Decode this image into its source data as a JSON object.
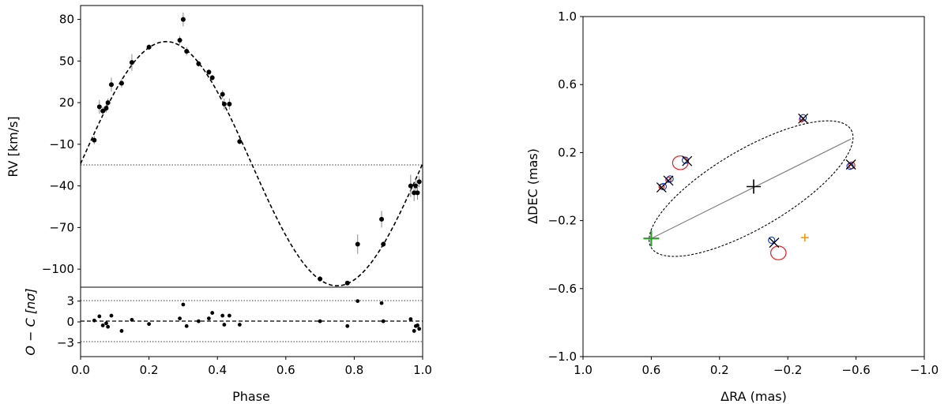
{
  "chart_data": [
    {
      "type": "scatter",
      "panel": "rv",
      "xlabel": "Phase",
      "ylabel": "RV [km/s]",
      "xlim": [
        0.0,
        1.0
      ],
      "ylim": [
        -113,
        90
      ],
      "xticks": [
        "0.0",
        "0.2",
        "0.4",
        "0.6",
        "0.8",
        "1.0"
      ],
      "yticks": [
        "80",
        "50",
        "20",
        "−10",
        "−40",
        "−70",
        "−100"
      ],
      "ytick_values": [
        80,
        50,
        20,
        -10,
        -40,
        -70,
        -100
      ],
      "systemic_velocity": -24,
      "model_curve": {
        "style": "dashed",
        "gamma": -24,
        "amplitude": 88,
        "peak_phase": 0.25
      },
      "points": [
        {
          "x": 0.04,
          "y": -7,
          "err": 3
        },
        {
          "x": 0.055,
          "y": 17,
          "err": 5
        },
        {
          "x": 0.065,
          "y": 14,
          "err": 3
        },
        {
          "x": 0.075,
          "y": 16,
          "err": 3
        },
        {
          "x": 0.08,
          "y": 20,
          "err": 3
        },
        {
          "x": 0.09,
          "y": 33,
          "err": 5
        },
        {
          "x": 0.12,
          "y": 34,
          "err": 3
        },
        {
          "x": 0.15,
          "y": 49,
          "err": 6
        },
        {
          "x": 0.2,
          "y": 60,
          "err": 2
        },
        {
          "x": 0.29,
          "y": 65,
          "err": 3
        },
        {
          "x": 0.3,
          "y": 80,
          "err": 5
        },
        {
          "x": 0.31,
          "y": 57,
          "err": 3
        },
        {
          "x": 0.345,
          "y": 48,
          "err": 2
        },
        {
          "x": 0.375,
          "y": 42,
          "err": 2
        },
        {
          "x": 0.385,
          "y": 38,
          "err": 2
        },
        {
          "x": 0.415,
          "y": 26,
          "err": 3
        },
        {
          "x": 0.42,
          "y": 19,
          "err": 4
        },
        {
          "x": 0.435,
          "y": 19,
          "err": 4
        },
        {
          "x": 0.465,
          "y": -8,
          "err": 2
        },
        {
          "x": 0.7,
          "y": -107,
          "err": 2
        },
        {
          "x": 0.78,
          "y": -110,
          "err": 1
        },
        {
          "x": 0.81,
          "y": -82,
          "err": 7
        },
        {
          "x": 0.88,
          "y": -64,
          "err": 6
        },
        {
          "x": 0.885,
          "y": -82,
          "err": 2
        },
        {
          "x": 0.965,
          "y": -40,
          "err": 8
        },
        {
          "x": 0.975,
          "y": -45,
          "err": 6
        },
        {
          "x": 0.98,
          "y": -40,
          "err": 5
        },
        {
          "x": 0.99,
          "y": -37,
          "err": 4
        },
        {
          "x": 0.985,
          "y": -45,
          "err": 5
        }
      ]
    },
    {
      "type": "scatter",
      "panel": "residuals",
      "xlabel": "Phase",
      "ylabel": "O − C [nσ]",
      "xlim": [
        0.0,
        1.0
      ],
      "ylim": [
        -5,
        5
      ],
      "yticks": [
        "3",
        "0",
        "−3"
      ],
      "ytick_values": [
        3,
        0,
        -3
      ],
      "guide_lines": [
        3,
        0,
        -3
      ],
      "points": [
        {
          "x": 0.04,
          "y": 0.2
        },
        {
          "x": 0.055,
          "y": 0.8
        },
        {
          "x": 0.065,
          "y": -0.5
        },
        {
          "x": 0.075,
          "y": -0.2
        },
        {
          "x": 0.08,
          "y": -0.7
        },
        {
          "x": 0.09,
          "y": 0.9
        },
        {
          "x": 0.12,
          "y": -1.3
        },
        {
          "x": 0.15,
          "y": 0.3
        },
        {
          "x": 0.2,
          "y": -0.3
        },
        {
          "x": 0.29,
          "y": 0.5
        },
        {
          "x": 0.3,
          "y": 2.5
        },
        {
          "x": 0.31,
          "y": -0.6
        },
        {
          "x": 0.345,
          "y": 0.1
        },
        {
          "x": 0.375,
          "y": 0.5
        },
        {
          "x": 0.385,
          "y": 1.3
        },
        {
          "x": 0.415,
          "y": 0.9
        },
        {
          "x": 0.42,
          "y": -0.4
        },
        {
          "x": 0.435,
          "y": 0.9
        },
        {
          "x": 0.465,
          "y": -0.4
        },
        {
          "x": 0.7,
          "y": 0.1
        },
        {
          "x": 0.78,
          "y": -0.6
        },
        {
          "x": 0.81,
          "y": 3.0
        },
        {
          "x": 0.88,
          "y": 2.7
        },
        {
          "x": 0.885,
          "y": 0.1
        },
        {
          "x": 0.965,
          "y": 0.4
        },
        {
          "x": 0.975,
          "y": -1.3
        },
        {
          "x": 0.98,
          "y": -0.6
        },
        {
          "x": 0.99,
          "y": -1.0
        },
        {
          "x": 0.985,
          "y": -0.5
        }
      ]
    },
    {
      "type": "scatter",
      "panel": "orbit",
      "xlabel": "ΔRA (mas)",
      "ylabel": "ΔDEC (mas)",
      "xlim": [
        1.0,
        -1.0
      ],
      "ylim": [
        -1.0,
        1.0
      ],
      "xticks": [
        "1.0",
        "0.6",
        "0.2",
        "−0.2",
        "−0.6",
        "−1.0"
      ],
      "xtick_values": [
        1.0,
        0.6,
        0.2,
        -0.2,
        -0.6,
        -1.0
      ],
      "yticks": [
        "1.0",
        "0.6",
        "0.2",
        "−0.2",
        "−0.6",
        "−1.0"
      ],
      "ytick_values": [
        1.0,
        0.6,
        0.2,
        -0.2,
        -0.6,
        -1.0
      ],
      "orbit_ellipse": {
        "center": [
          0.015,
          -0.012
        ],
        "semi_major": 0.68,
        "semi_minor": 0.23,
        "angle_deg": 30.5,
        "style": "dashed"
      },
      "line_of_nodes": {
        "from": [
          0.6,
          -0.305
        ],
        "to": [
          -0.57,
          0.28
        ]
      },
      "primary_star": {
        "x": 0.0,
        "y": 0.0,
        "color": "#000000"
      },
      "periastron": {
        "x": 0.6,
        "y": -0.305,
        "color": "#2ca02c"
      },
      "orange_marker": {
        "x": -0.3,
        "y": -0.3,
        "color": "#ff9a00"
      },
      "observed_positions": [
        {
          "x": -0.29,
          "y": 0.4
        },
        {
          "x": -0.57,
          "y": 0.13
        },
        {
          "x": 0.39,
          "y": 0.15
        },
        {
          "x": 0.5,
          "y": 0.035
        },
        {
          "x": 0.54,
          "y": -0.005
        },
        {
          "x": -0.12,
          "y": -0.33
        }
      ],
      "predicted_positions": [
        {
          "x": -0.29,
          "y": 0.405
        },
        {
          "x": -0.565,
          "y": 0.12
        },
        {
          "x": 0.4,
          "y": 0.155
        },
        {
          "x": 0.49,
          "y": 0.045
        },
        {
          "x": 0.53,
          "y": 0.0
        },
        {
          "x": -0.105,
          "y": -0.315
        }
      ],
      "red_error_ellipses": [
        {
          "x": -0.28,
          "y": 0.395,
          "rx": 0.012,
          "ry": 0.015
        },
        {
          "x": -0.575,
          "y": 0.125,
          "rx": 0.018,
          "ry": 0.02
        },
        {
          "x": 0.43,
          "y": 0.14,
          "rx": 0.045,
          "ry": 0.04
        },
        {
          "x": 0.5,
          "y": 0.04,
          "rx": 0.015,
          "ry": 0.015
        },
        {
          "x": 0.54,
          "y": 0.0,
          "rx": 0.015,
          "ry": 0.015
        },
        {
          "x": -0.145,
          "y": -0.39,
          "rx": 0.045,
          "ry": 0.04
        }
      ],
      "colors": {
        "observed": "#000000",
        "predicted": "#0033cc",
        "error": "#e41a1c",
        "nodes": "#808080"
      }
    }
  ]
}
